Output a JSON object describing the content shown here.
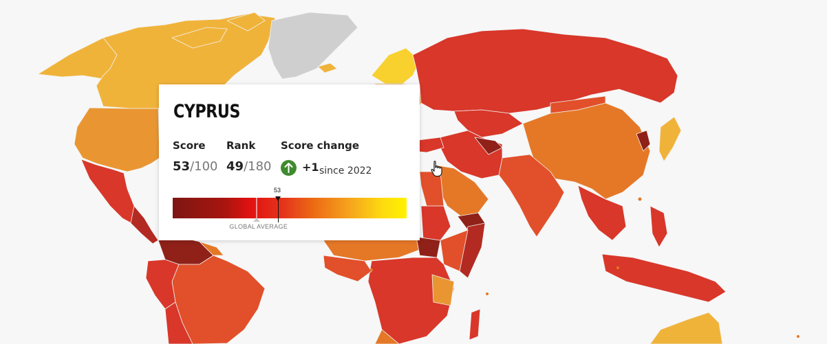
{
  "map": {
    "colors": {
      "ocean": "#f7f7f7",
      "very_clean": "#f8d12f",
      "clean": "#f0b33a",
      "mid": "#e99632",
      "orange": "#e57827",
      "red_orange": "#e1502a",
      "red": "#d8372a",
      "dark_red": "#b32a22",
      "very_dark": "#8f2119",
      "no_data": "#cfcfcf"
    }
  },
  "tooltip": {
    "country": "CYPRUS",
    "score_label": "Score",
    "score_value": "53",
    "score_max": "/100",
    "rank_label": "Rank",
    "rank_value": "49",
    "rank_max": "/180",
    "change_label": "Score change",
    "change_value": "+1",
    "change_since": "since 2022",
    "change_icon": "arrow-up-icon",
    "change_color": "#3f8a2e",
    "scale_marker": "53",
    "global_average_label": "GLOBAL AVERAGE"
  },
  "scale": {
    "score": 53,
    "global_average_position": 0.36,
    "marker_position": 0.45
  }
}
